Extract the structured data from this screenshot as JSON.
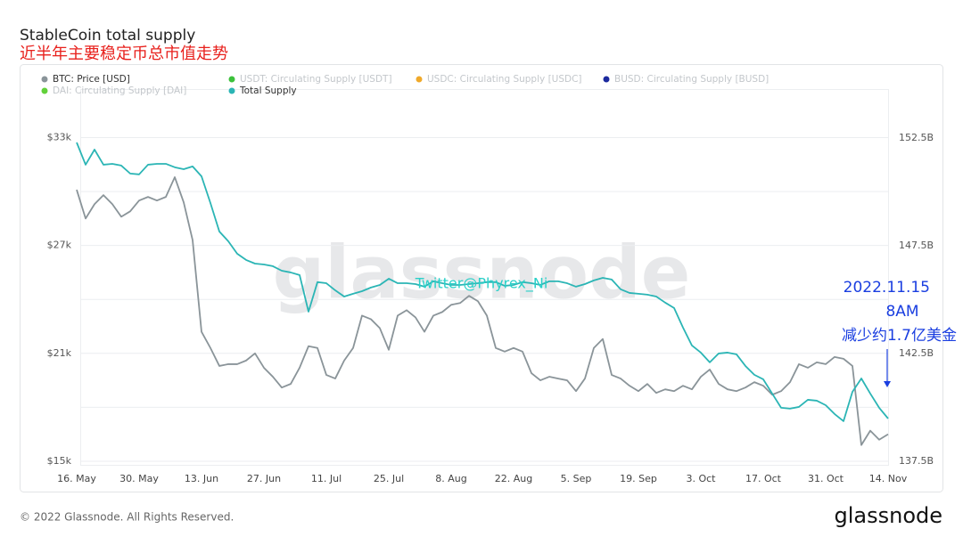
{
  "chart_data": {
    "type": "line",
    "title": "StableCoin total supply",
    "subtitle": "近半年主要稳定币总市值走势",
    "watermark": "glassnode",
    "overlay_text": "Twitter@Phyrex_Ni",
    "annotation": [
      "2022.11.15",
      "8AM",
      "减少约1.7亿美金"
    ],
    "footer": "© 2022 Glassnode. All Rights Reserved.",
    "logo": "glassnode",
    "categories": [
      "16. May",
      null,
      null,
      null,
      null,
      null,
      null,
      "30. May",
      null,
      null,
      null,
      null,
      null,
      null,
      "13. Jun",
      null,
      null,
      null,
      null,
      null,
      null,
      "27. Jun",
      null,
      null,
      null,
      null,
      null,
      null,
      "11. Jul",
      null,
      null,
      null,
      null,
      null,
      null,
      "25. Jul",
      null,
      null,
      null,
      null,
      null,
      null,
      "8. Aug",
      null,
      null,
      null,
      null,
      null,
      null,
      "22. Aug",
      null,
      null,
      null,
      null,
      null,
      null,
      "5. Sep",
      null,
      null,
      null,
      null,
      null,
      null,
      "19. Sep",
      null,
      null,
      null,
      null,
      null,
      null,
      "3. Oct",
      null,
      null,
      null,
      null,
      null,
      null,
      "17. Oct",
      null,
      null,
      null,
      null,
      null,
      null,
      "31. Oct",
      null,
      null,
      null,
      null,
      null,
      null,
      "14. Nov"
    ],
    "series": [
      {
        "name": "BTC: Price [USD]",
        "color": "#8a9499",
        "visible": true,
        "axis": "y",
        "values": [
          30100,
          28500,
          29300,
          29800,
          29300,
          28600,
          28900,
          29500,
          29700,
          29500,
          29700,
          30800,
          29400,
          27300,
          22200,
          21300,
          20300,
          20400,
          20400,
          20600,
          21000,
          20200,
          19700,
          19100,
          19300,
          20200,
          21400,
          21300,
          19800,
          19600,
          20600,
          21300,
          23100,
          22900,
          22400,
          21200,
          23100,
          23400,
          23000,
          22200,
          23100,
          23300,
          23700,
          23800,
          24200,
          23900,
          23100,
          21300,
          21100,
          21300,
          21100,
          19900,
          19500,
          19700,
          19600,
          19500,
          18900,
          19600,
          21300,
          21800,
          19800,
          19600,
          19200,
          18900,
          19300,
          18800,
          19000,
          18900,
          19200,
          19000,
          19700,
          20100,
          19300,
          19000,
          18900,
          19100,
          19400,
          19200,
          18700,
          18900,
          19400,
          20400,
          20200,
          20500,
          20400,
          20800,
          20700,
          20300,
          15900,
          16700,
          16200,
          16500
        ]
      },
      {
        "name": "USDT: Circulating Supply [USDT]",
        "color": "#3cc13b",
        "visible": false
      },
      {
        "name": "USDC: Circulating Supply [USDC]",
        "color": "#f0a92a",
        "visible": false
      },
      {
        "name": "BUSD: Circulating Supply [BUSD]",
        "color": "#1c2a9e",
        "visible": false
      },
      {
        "name": "DAI: Circulating Supply [DAI]",
        "color": "#62d13a",
        "visible": false
      },
      {
        "name": "Total Supply",
        "color": "#2bb5b5",
        "visible": true,
        "axis": "y2",
        "values": [
          152.29,
          151.26,
          151.96,
          151.26,
          151.3,
          151.22,
          150.85,
          150.81,
          151.26,
          151.3,
          151.3,
          151.14,
          151.05,
          151.18,
          150.72,
          149.48,
          148.16,
          147.71,
          147.13,
          146.84,
          146.67,
          146.63,
          146.55,
          146.34,
          146.26,
          146.14,
          144.44,
          145.81,
          145.76,
          145.43,
          145.14,
          145.27,
          145.39,
          145.56,
          145.68,
          145.97,
          145.76,
          145.76,
          145.72,
          145.6,
          145.85,
          145.76,
          145.68,
          145.68,
          145.72,
          145.76,
          145.81,
          145.81,
          145.64,
          145.68,
          145.81,
          145.76,
          145.68,
          145.85,
          145.85,
          145.76,
          145.6,
          145.72,
          145.89,
          146.01,
          145.93,
          145.48,
          145.31,
          145.27,
          145.23,
          145.14,
          144.86,
          144.61,
          143.7,
          142.87,
          142.54,
          142.09,
          142.5,
          142.54,
          142.46,
          141.92,
          141.51,
          141.3,
          140.64,
          139.98,
          139.94,
          140.02,
          140.35,
          140.31,
          140.1,
          139.69,
          139.36,
          140.72,
          141.34,
          140.64,
          139.98,
          139.48
        ]
      }
    ],
    "ylim": [
      14750,
      35700
    ],
    "yticks": [
      {
        "value": 15000,
        "label": "$15k"
      },
      {
        "value": 21000,
        "label": "$21k"
      },
      {
        "value": 27000,
        "label": "$27k"
      },
      {
        "value": 33000,
        "label": "$33k"
      }
    ],
    "ygrid": [
      15000,
      18000,
      21000,
      24000,
      27000,
      30000,
      33000
    ],
    "y2lim": [
      137.29,
      154.77
    ],
    "y2ticks": [
      {
        "value": 137.5,
        "label": "137.5B"
      },
      {
        "value": 142.5,
        "label": "142.5B"
      },
      {
        "value": 147.5,
        "label": "147.5B"
      },
      {
        "value": 152.5,
        "label": "152.5B"
      }
    ],
    "grid": true
  }
}
